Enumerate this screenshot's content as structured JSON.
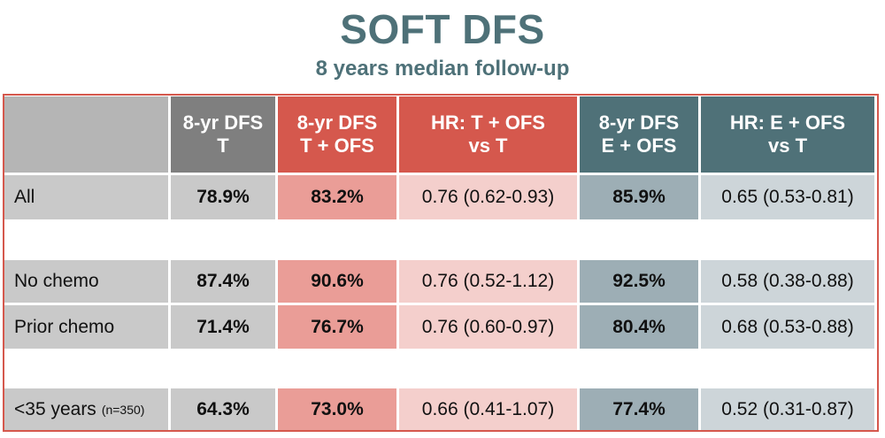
{
  "title": "SOFT DFS",
  "subtitle": "8 years median follow-up",
  "headers": [
    "",
    "8-yr DFS\nT",
    "8-yr DFS\nT + OFS",
    "HR: T + OFS\nvs T",
    "8-yr DFS\nE + OFS",
    "HR: E + OFS\nvs T"
  ],
  "header_lines": [
    [],
    [
      "8-yr DFS",
      "T"
    ],
    [
      "8-yr DFS",
      "T + OFS"
    ],
    [
      "HR: T + OFS",
      "vs T"
    ],
    [
      "8-yr DFS",
      "E + OFS"
    ],
    [
      "HR: E + OFS",
      "vs T"
    ]
  ],
  "rows": [
    {
      "label": "All",
      "note": "",
      "dfs_t": "78.9%",
      "dfs_t_ofs": "83.2%",
      "hr_t_ofs": "0.76 (0.62-0.93)",
      "dfs_e_ofs": "85.9%",
      "hr_e_ofs": "0.65 (0.53-0.81)"
    },
    {
      "label": "No chemo",
      "note": "",
      "dfs_t": "87.4%",
      "dfs_t_ofs": "90.6%",
      "hr_t_ofs": "0.76 (0.52-1.12)",
      "dfs_e_ofs": "92.5%",
      "hr_e_ofs": "0.58 (0.38-0.88)"
    },
    {
      "label": "Prior chemo",
      "note": "",
      "dfs_t": "71.4%",
      "dfs_t_ofs": "76.7%",
      "hr_t_ofs": "0.76 (0.60-0.97)",
      "dfs_e_ofs": "80.4%",
      "hr_e_ofs": "0.68 (0.53-0.88)"
    },
    {
      "label": "<35 years",
      "note": "(n=350)",
      "dfs_t": "64.3%",
      "dfs_t_ofs": "73.0%",
      "hr_t_ofs": "0.66 (0.41-1.07)",
      "dfs_e_ofs": "77.4%",
      "hr_e_ofs": "0.52 (0.31-0.87)"
    }
  ],
  "colors": {
    "title": "#4e7178",
    "frame": "#d5584d",
    "tam_header": "#7f7f7f",
    "tam_ofs_header": "#d5584d",
    "exe_ofs_header": "#4f7178"
  }
}
